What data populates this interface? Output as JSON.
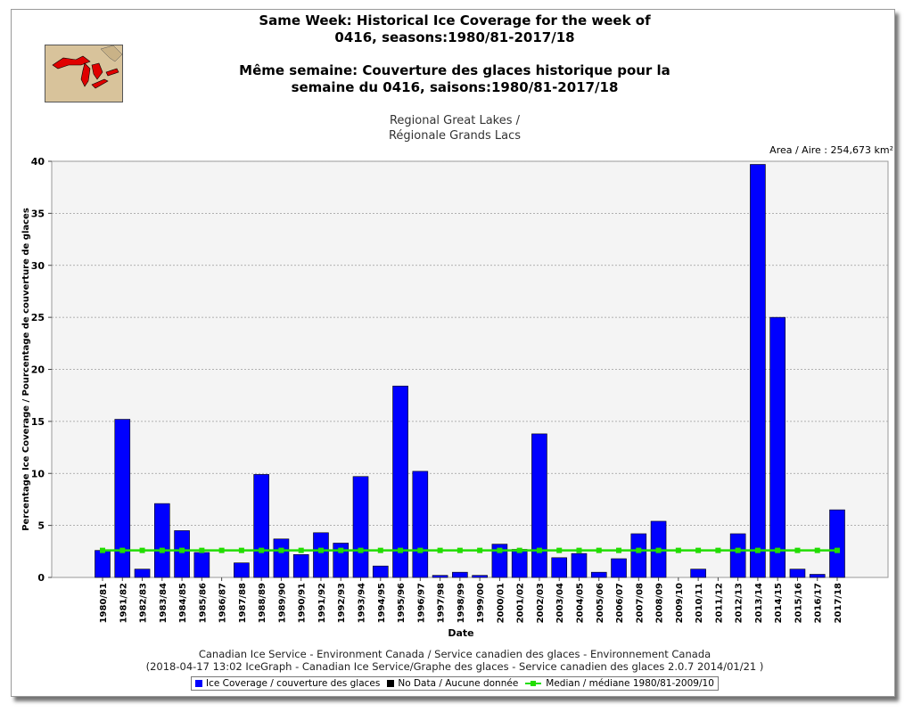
{
  "header": {
    "title_en_line1": "Same Week: Historical Ice Coverage for the week of",
    "title_en_line2": "0416, seasons:1980/81-2017/18",
    "title_fr_line1": "Même semaine: Couverture des glaces historique pour la",
    "title_fr_line2": "semaine du 0416, saisons:1980/81-2017/18",
    "region_line1": "Regional Great Lakes /",
    "region_line2": "Régionale Grands Lacs",
    "area": "Area / Aire : 254,673 km²"
  },
  "footer": {
    "line1": "Canadian Ice Service - Environment Canada / Service canadien des glaces - Environnement Canada",
    "line2": "(2018-04-17 13:02 IceGraph - Canadian Ice Service/Graphe des glaces - Service canadien des glaces 2.0.7 2014/01/21 )"
  },
  "legend": {
    "coverage": "Ice Coverage / couverture des glaces",
    "nodata": "No Data / Aucune donnée",
    "median": "Median / médiane 1980/81-2009/10"
  },
  "colors": {
    "bar": "#0000ff",
    "median": "#22dd00"
  },
  "chart_data": {
    "type": "bar",
    "xlabel": "Date",
    "ylabel": "Percentage Ice Coverage / Pourcentage de couverture de glaces",
    "ylim": [
      0,
      40
    ],
    "yticks": [
      0,
      5,
      10,
      15,
      20,
      25,
      30,
      35,
      40
    ],
    "grid": true,
    "categories": [
      "1980/81",
      "1981/82",
      "1982/83",
      "1983/84",
      "1984/85",
      "1985/86",
      "1986/87",
      "1987/88",
      "1988/89",
      "1989/90",
      "1990/91",
      "1991/92",
      "1992/93",
      "1993/94",
      "1994/95",
      "1995/96",
      "1996/97",
      "1997/98",
      "1998/99",
      "1999/00",
      "2000/01",
      "2001/02",
      "2002/03",
      "2003/04",
      "2004/05",
      "2005/06",
      "2006/07",
      "2007/08",
      "2008/09",
      "2009/10",
      "2010/11",
      "2011/12",
      "2012/13",
      "2013/14",
      "2014/15",
      "2015/16",
      "2016/17",
      "2017/18"
    ],
    "series": [
      {
        "name": "Ice Coverage / couverture des glaces",
        "values": [
          2.6,
          15.2,
          0.8,
          7.1,
          4.5,
          2.4,
          0,
          1.4,
          9.9,
          3.7,
          2.2,
          4.3,
          3.3,
          9.7,
          1.1,
          18.4,
          10.2,
          0.2,
          0.5,
          0.2,
          3.2,
          2.7,
          13.8,
          1.9,
          2.3,
          0.5,
          1.8,
          4.2,
          5.4,
          0,
          0.8,
          0,
          4.2,
          39.7,
          25.0,
          0.8,
          0.3,
          6.5
        ]
      },
      {
        "name": "Median / médiane 1980/81-2009/10",
        "type": "line",
        "value": 2.6
      }
    ]
  }
}
